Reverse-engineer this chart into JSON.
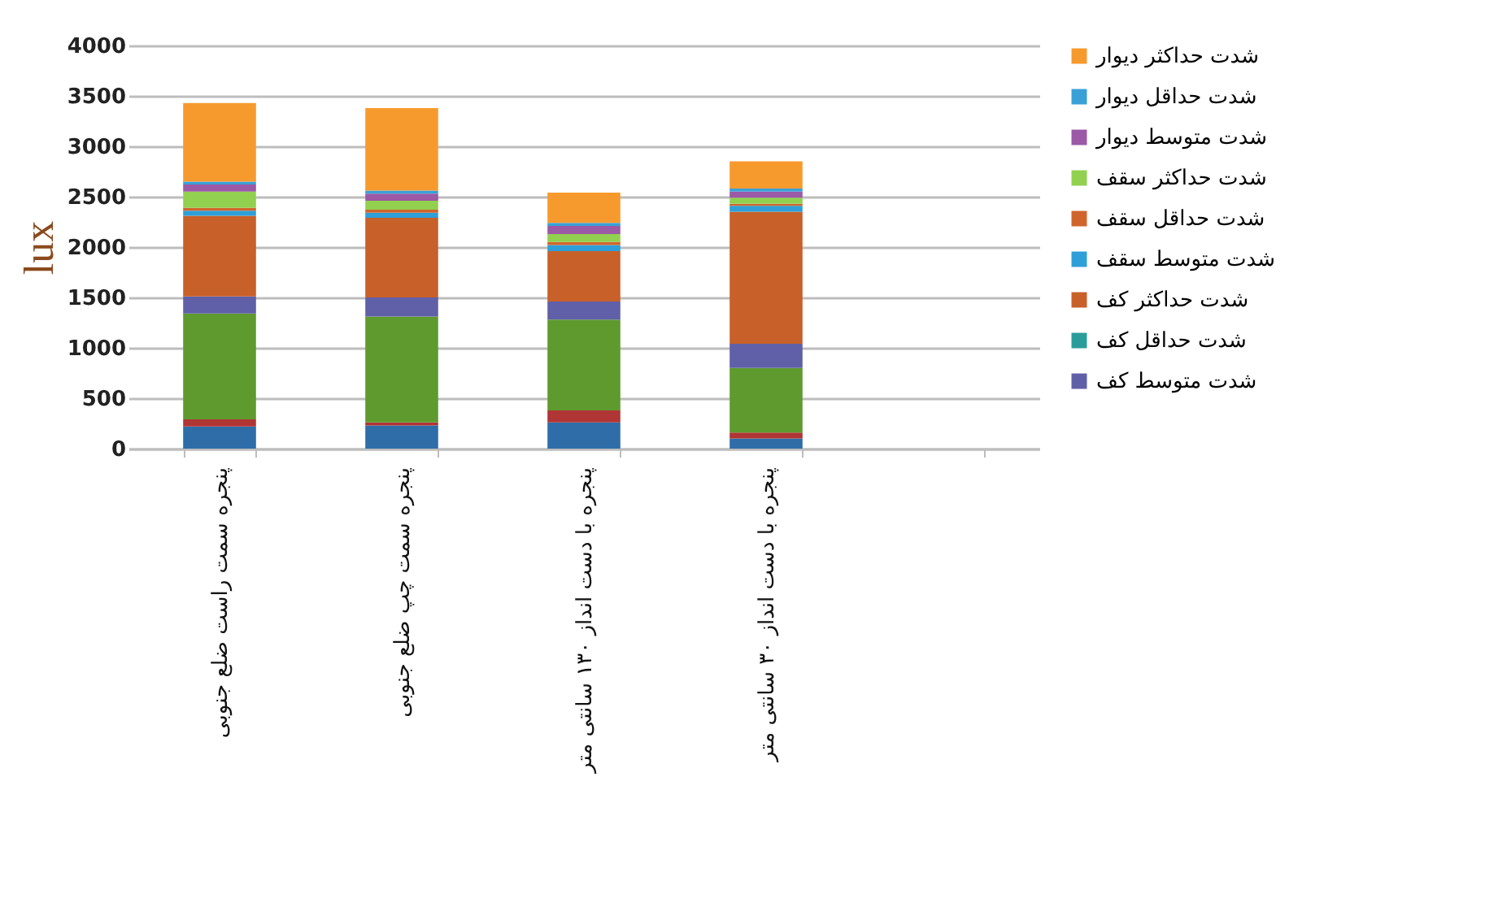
{
  "chart_data": {
    "type": "bar",
    "stacked": true,
    "ylabel": "lux",
    "ylim": [
      0,
      4000
    ],
    "yticks": [
      0,
      500,
      1000,
      1500,
      2000,
      2500,
      3000,
      3500,
      4000
    ],
    "grid": "y",
    "legend": "right",
    "categories": [
      "پنجره سمت راست ضلع جنوبی",
      "پنجره سمت چپ ضلع جنوبی",
      "پنجره با دست انداز ۱۳۰ سانتی متر",
      "پنجره با دست انداز ۳۰ سانتی متر",
      null
    ],
    "series": [
      {
        "color": "#2e6da8",
        "values": [
          220,
          230,
          260,
          100,
          null
        ]
      },
      {
        "color": "#b03535",
        "values": [
          70,
          30,
          120,
          60,
          null
        ]
      },
      {
        "color": "#5f9a2e",
        "values": [
          1050,
          1050,
          900,
          640,
          null
        ]
      },
      {
        "name": "شدت متوسط کف",
        "color": "#6060a8",
        "values": [
          170,
          190,
          180,
          240,
          null
        ]
      },
      {
        "name": "شدت حداقل کف",
        "color": "#2a9d9a",
        "values": [
          0,
          0,
          0,
          0,
          null
        ]
      },
      {
        "name": "شدت حداکثر کف",
        "color": "#c8602a",
        "values": [
          800,
          790,
          500,
          1310,
          null
        ]
      },
      {
        "name": "شدت متوسط سقف",
        "color": "#2e9fd8",
        "values": [
          50,
          50,
          60,
          60,
          null
        ]
      },
      {
        "name": "شدت حداقل سقف",
        "color": "#d0652c",
        "values": [
          30,
          30,
          30,
          20,
          null
        ]
      },
      {
        "name": "شدت حداکثر سقف",
        "color": "#92d050",
        "values": [
          160,
          90,
          80,
          60,
          null
        ]
      },
      {
        "name": "شدت متوسط دیوار",
        "color": "#9b59a6",
        "values": [
          70,
          70,
          80,
          60,
          null
        ]
      },
      {
        "name": "شدت حداقل دیوار",
        "color": "#3aa0d8",
        "values": [
          30,
          30,
          30,
          30,
          null
        ]
      },
      {
        "name": "شدت حداکثر دیوار",
        "color": "#f79a2e",
        "values": [
          780,
          820,
          300,
          270,
          null
        ]
      }
    ]
  }
}
